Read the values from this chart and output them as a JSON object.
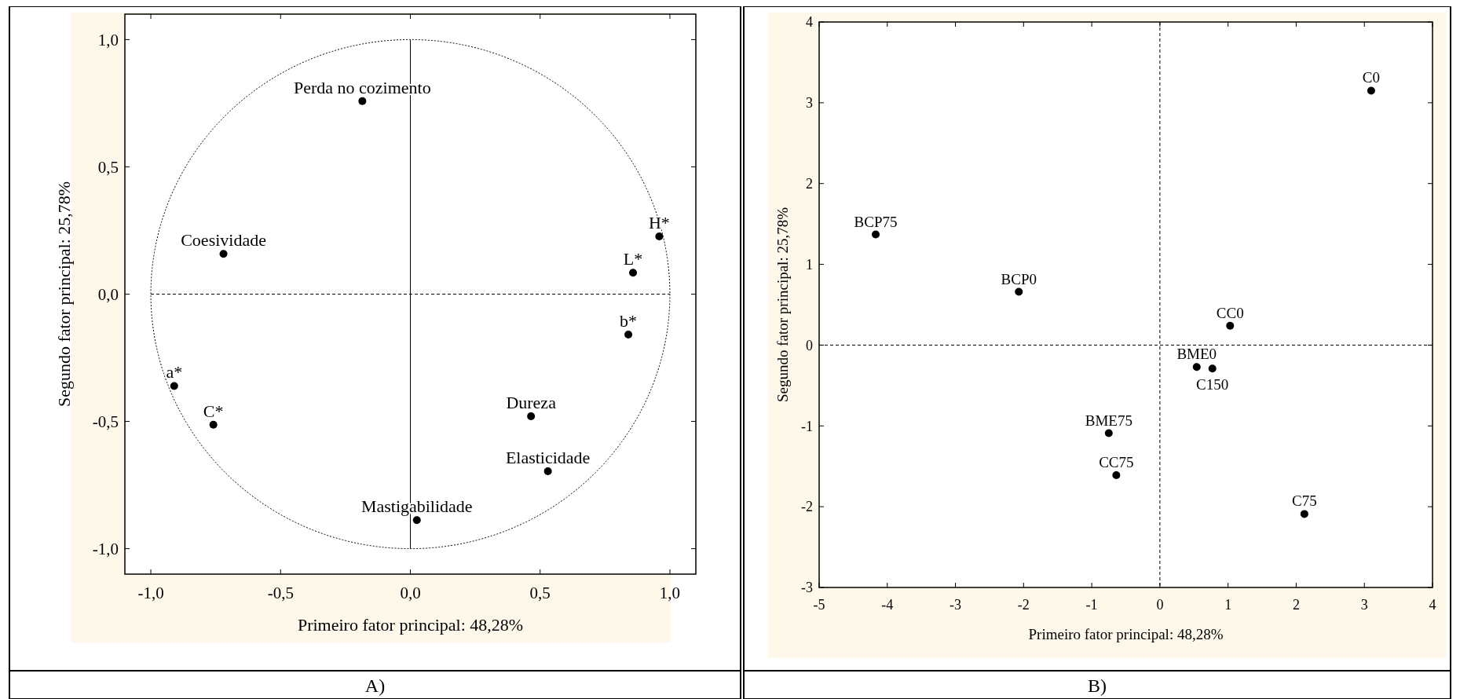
{
  "chart_data": [
    {
      "type": "scatter",
      "xlabel": "Primeiro fator principal: 48,28%",
      "ylabel": "Segundo fator principal: 25,78%",
      "xlim": [
        -1.1,
        1.1
      ],
      "ylim": [
        -1.1,
        1.1
      ],
      "xticks": [
        {
          "value": -1,
          "label": "-1,0"
        },
        {
          "value": -0.5,
          "label": "-0,5"
        },
        {
          "value": 0,
          "label": "0,0"
        },
        {
          "value": 0.5,
          "label": "0,5"
        },
        {
          "value": 1,
          "label": "1,0"
        }
      ],
      "yticks": [
        {
          "value": -1,
          "label": "-1,0"
        },
        {
          "value": -0.5,
          "label": "-0,5"
        },
        {
          "value": 0,
          "label": "0,0"
        },
        {
          "value": 0.5,
          "label": "0,5"
        },
        {
          "value": 1,
          "label": "1,0"
        }
      ],
      "marker": "circle",
      "grid": false,
      "series": [
        {
          "color": "#000000",
          "x": [
            -0.185,
            -0.72,
            0.959,
            0.858,
            0.84,
            -0.91,
            -0.759,
            0.465,
            0.53,
            0.025
          ],
          "values": [
            0.758,
            0.158,
            0.227,
            0.084,
            -0.159,
            -0.361,
            -0.513,
            -0.48,
            -0.696,
            -0.888
          ]
        }
      ],
      "ref_lines": [
        {
          "axis": "x",
          "value": 0,
          "line_style": "solid"
        },
        {
          "axis": "y",
          "value": 0,
          "line_style": "dashed"
        }
      ],
      "annotations": [
        {
          "text": "Perda no cozimento",
          "x": -0.185,
          "y": 0.758
        },
        {
          "text": "Coesividade",
          "x": -0.72,
          "y": 0.158
        },
        {
          "text": "H*",
          "x": 0.959,
          "y": 0.227
        },
        {
          "text": "L*",
          "x": 0.858,
          "y": 0.084
        },
        {
          "text": "b*",
          "x": 0.84,
          "y": -0.159
        },
        {
          "text": "a*",
          "x": -0.91,
          "y": -0.361
        },
        {
          "text": "C*",
          "x": -0.759,
          "y": -0.513
        },
        {
          "text": "Dureza",
          "x": 0.465,
          "y": -0.48
        },
        {
          "text": "Elasticidade",
          "x": 0.53,
          "y": -0.696
        },
        {
          "text": "Mastigabilidade",
          "x": 0.025,
          "y": -0.888
        },
        "A)"
      ]
    },
    {
      "type": "scatter",
      "xlabel": "Primeiro fator principal: 48,28%",
      "ylabel": "Segundo fator principal: 25,78%",
      "xlim": [
        -5,
        4
      ],
      "ylim": [
        -3,
        4
      ],
      "xticks": [
        -5,
        -4,
        -3,
        -2,
        -1,
        0,
        1,
        2,
        3,
        4
      ],
      "yticks": [
        -3,
        -2,
        -1,
        0,
        1,
        2,
        3,
        4
      ],
      "marker": "circle",
      "grid": false,
      "series": [
        {
          "color": "#000000",
          "x": [
            3.1,
            -4.17,
            -2.07,
            1.03,
            0.54,
            0.77,
            -0.75,
            -0.64,
            2.12
          ],
          "values": [
            3.15,
            1.37,
            0.66,
            0.24,
            -0.27,
            -0.29,
            -1.09,
            -1.61,
            -2.09
          ]
        }
      ],
      "ref_lines": [
        {
          "axis": "x",
          "value": 0,
          "line_style": "dashed"
        },
        {
          "axis": "y",
          "value": 0,
          "line_style": "dashed"
        }
      ],
      "annotations": [
        {
          "text": "C0",
          "x": 3.1,
          "y": 3.15
        },
        {
          "text": "BCP75",
          "x": -4.17,
          "y": 1.37
        },
        {
          "text": "BCP0",
          "x": -2.07,
          "y": 0.66
        },
        {
          "text": "CC0",
          "x": 1.03,
          "y": 0.24
        },
        {
          "text": "BME0",
          "x": 0.54,
          "y": -0.27
        },
        {
          "text": "C150",
          "x": 0.77,
          "y": -0.29
        },
        {
          "text": "BME75",
          "x": -0.75,
          "y": -1.09
        },
        {
          "text": "CC75",
          "x": -0.64,
          "y": -1.61
        },
        {
          "text": "C75",
          "x": 2.12,
          "y": -2.09
        },
        "B)"
      ]
    }
  ]
}
